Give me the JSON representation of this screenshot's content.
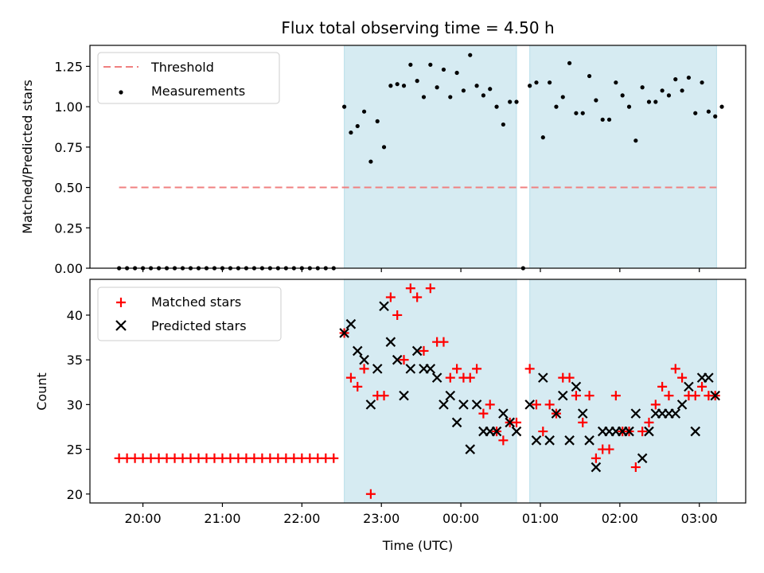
{
  "chart_data": [
    {
      "type": "scatter",
      "title": "Flux total observing time = 4.50 h",
      "xlabel": "",
      "ylabel": "Matched/Predicted stars",
      "ylim": [
        0,
        1.38
      ],
      "yticks": [
        0.0,
        0.25,
        0.5,
        0.75,
        1.0,
        1.25
      ],
      "ytick_labels": [
        "0.00",
        "0.25",
        "0.50",
        "0.75",
        "1.00",
        "1.25"
      ],
      "xlim": [
        "19:20",
        "03:35"
      ],
      "x_tick_labels_shown": false,
      "legend": {
        "placement": "top-left",
        "entries": [
          "Threshold",
          "Measurements"
        ]
      },
      "shaded_intervals": [
        [
          "22:32",
          "00:42"
        ],
        [
          "00:52",
          "03:13"
        ]
      ],
      "threshold": {
        "name": "Threshold",
        "value": 0.5,
        "x_range": [
          "19:42",
          "03:13"
        ],
        "color": "#f08080",
        "style": "dashed"
      },
      "series": [
        {
          "name": "Measurements",
          "color": "#000000",
          "marker": "dot",
          "points": [
            [
              "19:42",
              0
            ],
            [
              "19:48",
              0
            ],
            [
              "19:54",
              0
            ],
            [
              "20:00",
              0
            ],
            [
              "20:06",
              0
            ],
            [
              "20:12",
              0
            ],
            [
              "20:18",
              0
            ],
            [
              "20:24",
              0
            ],
            [
              "20:30",
              0
            ],
            [
              "20:36",
              0
            ],
            [
              "20:42",
              0
            ],
            [
              "20:48",
              0
            ],
            [
              "20:54",
              0
            ],
            [
              "21:00",
              0
            ],
            [
              "21:06",
              0
            ],
            [
              "21:12",
              0
            ],
            [
              "21:18",
              0
            ],
            [
              "21:24",
              0
            ],
            [
              "21:30",
              0
            ],
            [
              "21:36",
              0
            ],
            [
              "21:42",
              0
            ],
            [
              "21:48",
              0
            ],
            [
              "21:54",
              0
            ],
            [
              "22:00",
              0
            ],
            [
              "22:06",
              0
            ],
            [
              "22:12",
              0
            ],
            [
              "22:18",
              0
            ],
            [
              "22:24",
              0
            ],
            [
              "22:32",
              1.0
            ],
            [
              "22:37",
              0.84
            ],
            [
              "22:42",
              0.88
            ],
            [
              "22:47",
              0.97
            ],
            [
              "22:52",
              0.66
            ],
            [
              "22:57",
              0.91
            ],
            [
              "23:02",
              0.75
            ],
            [
              "23:07",
              1.13
            ],
            [
              "23:12",
              1.14
            ],
            [
              "23:17",
              1.13
            ],
            [
              "23:22",
              1.26
            ],
            [
              "23:27",
              1.16
            ],
            [
              "23:32",
              1.06
            ],
            [
              "23:37",
              1.26
            ],
            [
              "23:42",
              1.12
            ],
            [
              "23:47",
              1.23
            ],
            [
              "23:52",
              1.06
            ],
            [
              "23:57",
              1.21
            ],
            [
              "00:02",
              1.1
            ],
            [
              "00:07",
              1.32
            ],
            [
              "00:12",
              1.13
            ],
            [
              "00:17",
              1.07
            ],
            [
              "00:22",
              1.11
            ],
            [
              "00:27",
              1.0
            ],
            [
              "00:32",
              0.89
            ],
            [
              "00:37",
              1.03
            ],
            [
              "00:42",
              1.03
            ],
            [
              "00:47",
              0.0
            ],
            [
              "00:52",
              1.13
            ],
            [
              "00:57",
              1.15
            ],
            [
              "01:02",
              0.81
            ],
            [
              "01:07",
              1.15
            ],
            [
              "01:12",
              1.0
            ],
            [
              "01:17",
              1.06
            ],
            [
              "01:22",
              1.27
            ],
            [
              "01:27",
              0.96
            ],
            [
              "01:32",
              0.96
            ],
            [
              "01:37",
              1.19
            ],
            [
              "01:42",
              1.04
            ],
            [
              "01:47",
              0.92
            ],
            [
              "01:52",
              0.92
            ],
            [
              "01:57",
              1.15
            ],
            [
              "02:02",
              1.07
            ],
            [
              "02:07",
              1.0
            ],
            [
              "02:12",
              0.79
            ],
            [
              "02:17",
              1.12
            ],
            [
              "02:22",
              1.03
            ],
            [
              "02:27",
              1.03
            ],
            [
              "02:32",
              1.1
            ],
            [
              "02:37",
              1.07
            ],
            [
              "02:42",
              1.17
            ],
            [
              "02:47",
              1.1
            ],
            [
              "02:52",
              1.18
            ],
            [
              "02:57",
              0.96
            ],
            [
              "03:02",
              1.15
            ],
            [
              "03:07",
              0.97
            ],
            [
              "03:12",
              0.94
            ],
            [
              "03:17",
              1.0
            ]
          ]
        }
      ]
    },
    {
      "type": "scatter",
      "title": "",
      "xlabel": "Time (UTC)",
      "ylabel": "Count",
      "ylim": [
        19,
        44
      ],
      "yticks": [
        20,
        25,
        30,
        35,
        40
      ],
      "xlim": [
        "19:20",
        "03:35"
      ],
      "xticks": [
        "20:00",
        "21:00",
        "22:00",
        "23:00",
        "00:00",
        "01:00",
        "02:00",
        "03:00"
      ],
      "legend": {
        "placement": "top-left",
        "entries": [
          "Matched stars",
          "Predicted stars"
        ]
      },
      "shaded_intervals": [
        [
          "22:32",
          "00:42"
        ],
        [
          "00:52",
          "03:13"
        ]
      ],
      "series": [
        {
          "name": "Matched stars",
          "color": "#ff0000",
          "marker": "plus",
          "points": [
            [
              "19:42",
              24
            ],
            [
              "19:48",
              24
            ],
            [
              "19:54",
              24
            ],
            [
              "20:00",
              24
            ],
            [
              "20:06",
              24
            ],
            [
              "20:12",
              24
            ],
            [
              "20:18",
              24
            ],
            [
              "20:24",
              24
            ],
            [
              "20:30",
              24
            ],
            [
              "20:36",
              24
            ],
            [
              "20:42",
              24
            ],
            [
              "20:48",
              24
            ],
            [
              "20:54",
              24
            ],
            [
              "21:00",
              24
            ],
            [
              "21:06",
              24
            ],
            [
              "21:12",
              24
            ],
            [
              "21:18",
              24
            ],
            [
              "21:24",
              24
            ],
            [
              "21:30",
              24
            ],
            [
              "21:36",
              24
            ],
            [
              "21:42",
              24
            ],
            [
              "21:48",
              24
            ],
            [
              "21:54",
              24
            ],
            [
              "22:00",
              24
            ],
            [
              "22:06",
              24
            ],
            [
              "22:12",
              24
            ],
            [
              "22:18",
              24
            ],
            [
              "22:24",
              24
            ],
            [
              "22:32",
              38
            ],
            [
              "22:37",
              33
            ],
            [
              "22:42",
              32
            ],
            [
              "22:47",
              34
            ],
            [
              "22:52",
              20
            ],
            [
              "22:57",
              31
            ],
            [
              "23:02",
              31
            ],
            [
              "23:07",
              42
            ],
            [
              "23:12",
              40
            ],
            [
              "23:17",
              35
            ],
            [
              "23:22",
              43
            ],
            [
              "23:27",
              42
            ],
            [
              "23:32",
              36
            ],
            [
              "23:37",
              43
            ],
            [
              "23:42",
              37
            ],
            [
              "23:47",
              37
            ],
            [
              "23:52",
              33
            ],
            [
              "23:57",
              34
            ],
            [
              "00:02",
              33
            ],
            [
              "00:07",
              33
            ],
            [
              "00:12",
              34
            ],
            [
              "00:17",
              29
            ],
            [
              "00:22",
              30
            ],
            [
              "00:27",
              27
            ],
            [
              "00:32",
              26
            ],
            [
              "00:37",
              28
            ],
            [
              "00:42",
              28
            ],
            [
              "00:52",
              34
            ],
            [
              "00:57",
              30
            ],
            [
              "01:02",
              27
            ],
            [
              "01:07",
              30
            ],
            [
              "01:12",
              29
            ],
            [
              "01:17",
              33
            ],
            [
              "01:22",
              33
            ],
            [
              "01:27",
              31
            ],
            [
              "01:32",
              28
            ],
            [
              "01:37",
              31
            ],
            [
              "01:42",
              24
            ],
            [
              "01:47",
              25
            ],
            [
              "01:52",
              25
            ],
            [
              "01:57",
              31
            ],
            [
              "02:02",
              27
            ],
            [
              "02:07",
              27
            ],
            [
              "02:12",
              23
            ],
            [
              "02:17",
              27
            ],
            [
              "02:22",
              28
            ],
            [
              "02:27",
              30
            ],
            [
              "02:32",
              32
            ],
            [
              "02:37",
              31
            ],
            [
              "02:42",
              34
            ],
            [
              "02:47",
              33
            ],
            [
              "02:52",
              31
            ],
            [
              "02:57",
              31
            ],
            [
              "03:02",
              32
            ],
            [
              "03:07",
              31
            ],
            [
              "03:12",
              31
            ]
          ]
        },
        {
          "name": "Predicted stars",
          "color": "#000000",
          "marker": "x",
          "points": [
            [
              "22:32",
              38
            ],
            [
              "22:37",
              39
            ],
            [
              "22:42",
              36
            ],
            [
              "22:47",
              35
            ],
            [
              "22:52",
              30
            ],
            [
              "22:57",
              34
            ],
            [
              "23:02",
              41
            ],
            [
              "23:07",
              37
            ],
            [
              "23:12",
              35
            ],
            [
              "23:17",
              31
            ],
            [
              "23:22",
              34
            ],
            [
              "23:27",
              36
            ],
            [
              "23:32",
              34
            ],
            [
              "23:37",
              34
            ],
            [
              "23:42",
              33
            ],
            [
              "23:47",
              30
            ],
            [
              "23:52",
              31
            ],
            [
              "23:57",
              28
            ],
            [
              "00:02",
              30
            ],
            [
              "00:07",
              25
            ],
            [
              "00:12",
              30
            ],
            [
              "00:17",
              27
            ],
            [
              "00:22",
              27
            ],
            [
              "00:27",
              27
            ],
            [
              "00:32",
              29
            ],
            [
              "00:37",
              28
            ],
            [
              "00:42",
              27
            ],
            [
              "00:52",
              30
            ],
            [
              "00:57",
              26
            ],
            [
              "01:02",
              33
            ],
            [
              "01:07",
              26
            ],
            [
              "01:12",
              29
            ],
            [
              "01:17",
              31
            ],
            [
              "01:22",
              26
            ],
            [
              "01:27",
              32
            ],
            [
              "01:32",
              29
            ],
            [
              "01:37",
              26
            ],
            [
              "01:42",
              23
            ],
            [
              "01:47",
              27
            ],
            [
              "01:52",
              27
            ],
            [
              "01:57",
              27
            ],
            [
              "02:02",
              27
            ],
            [
              "02:07",
              27
            ],
            [
              "02:12",
              29
            ],
            [
              "02:17",
              24
            ],
            [
              "02:22",
              27
            ],
            [
              "02:27",
              29
            ],
            [
              "02:32",
              29
            ],
            [
              "02:37",
              29
            ],
            [
              "02:42",
              29
            ],
            [
              "02:47",
              30
            ],
            [
              "02:52",
              32
            ],
            [
              "02:57",
              27
            ],
            [
              "03:02",
              33
            ],
            [
              "03:07",
              33
            ],
            [
              "03:12",
              31
            ]
          ]
        }
      ]
    }
  ]
}
